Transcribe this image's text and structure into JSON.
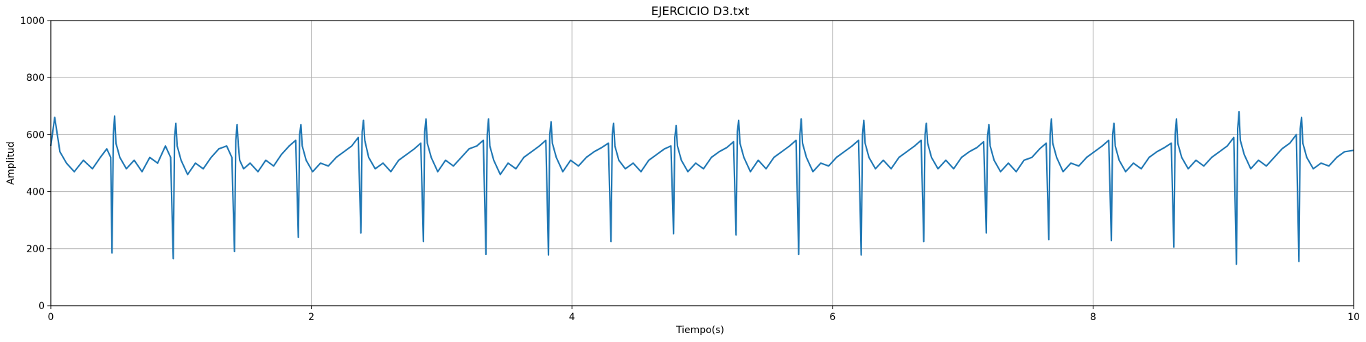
{
  "chart_data": {
    "type": "line",
    "title": "EJERCICIO D3.txt",
    "xlabel": "Tiempo(s)",
    "ylabel": "Amplitud",
    "xlim": [
      0,
      10
    ],
    "ylim": [
      0,
      1000
    ],
    "xticks": [
      0,
      2,
      4,
      6,
      8,
      10
    ],
    "yticks": [
      0,
      200,
      400,
      600,
      800,
      1000
    ],
    "grid": true,
    "legend": "none",
    "series_color": "#1f77b4",
    "series": [
      {
        "x": [
          0.0,
          0.03,
          0.07,
          0.12,
          0.18,
          0.25,
          0.32,
          0.38,
          0.43,
          0.46,
          0.47,
          0.48,
          0.49,
          0.5,
          0.53,
          0.58,
          0.64,
          0.7,
          0.76,
          0.82,
          0.88,
          0.92,
          0.94,
          0.95,
          0.96,
          0.97,
          1.0,
          1.05,
          1.11,
          1.17,
          1.23,
          1.29,
          1.35,
          1.39,
          1.41,
          1.42,
          1.43,
          1.44,
          1.45,
          1.48,
          1.53,
          1.59,
          1.65,
          1.71,
          1.77,
          1.83,
          1.88,
          1.9,
          1.91,
          1.92,
          1.93,
          1.96,
          2.01,
          2.07,
          2.13,
          2.19,
          2.25,
          2.31,
          2.36,
          2.38,
          2.39,
          2.4,
          2.41,
          2.44,
          2.49,
          2.55,
          2.61,
          2.67,
          2.73,
          2.79,
          2.84,
          2.86,
          2.87,
          2.88,
          2.89,
          2.92,
          2.97,
          3.03,
          3.09,
          3.15,
          3.21,
          3.27,
          3.32,
          3.34,
          3.35,
          3.36,
          3.37,
          3.4,
          3.45,
          3.51,
          3.57,
          3.63,
          3.69,
          3.75,
          3.8,
          3.82,
          3.83,
          3.84,
          3.85,
          3.88,
          3.93,
          3.99,
          4.05,
          4.11,
          4.17,
          4.23,
          4.28,
          4.3,
          4.31,
          4.32,
          4.33,
          4.36,
          4.41,
          4.47,
          4.53,
          4.59,
          4.65,
          4.71,
          4.76,
          4.78,
          4.79,
          4.8,
          4.81,
          4.84,
          4.89,
          4.95,
          5.01,
          5.07,
          5.13,
          5.19,
          5.24,
          5.26,
          5.27,
          5.28,
          5.29,
          5.32,
          5.37,
          5.43,
          5.49,
          5.55,
          5.61,
          5.67,
          5.72,
          5.74,
          5.75,
          5.76,
          5.77,
          5.8,
          5.85,
          5.91,
          5.97,
          6.03,
          6.09,
          6.15,
          6.2,
          6.22,
          6.23,
          6.24,
          6.25,
          6.28,
          6.33,
          6.39,
          6.45,
          6.51,
          6.57,
          6.63,
          6.68,
          6.7,
          6.71,
          6.72,
          6.73,
          6.76,
          6.81,
          6.87,
          6.93,
          6.99,
          7.05,
          7.11,
          7.16,
          7.18,
          7.19,
          7.2,
          7.21,
          7.24,
          7.29,
          7.35,
          7.41,
          7.47,
          7.53,
          7.59,
          7.64,
          7.66,
          7.67,
          7.68,
          7.69,
          7.72,
          7.77,
          7.83,
          7.89,
          7.95,
          8.01,
          8.07,
          8.12,
          8.14,
          8.15,
          8.16,
          8.17,
          8.2,
          8.25,
          8.31,
          8.37,
          8.43,
          8.49,
          8.55,
          8.6,
          8.62,
          8.63,
          8.64,
          8.65,
          8.68,
          8.73,
          8.79,
          8.85,
          8.91,
          8.97,
          9.03,
          9.08,
          9.1,
          9.11,
          9.12,
          9.13,
          9.16,
          9.21,
          9.27,
          9.33,
          9.39,
          9.45,
          9.51,
          9.56,
          9.58,
          9.59,
          9.6,
          9.61,
          9.64,
          9.69,
          9.75,
          9.81,
          9.87,
          9.93,
          10.0
        ],
        "y": [
          560,
          660,
          540,
          500,
          470,
          510,
          480,
          520,
          550,
          520,
          185,
          600,
          665,
          570,
          520,
          480,
          510,
          470,
          520,
          500,
          560,
          520,
          165,
          590,
          640,
          560,
          510,
          460,
          500,
          480,
          520,
          550,
          560,
          520,
          190,
          580,
          635,
          560,
          510,
          480,
          500,
          470,
          510,
          490,
          530,
          560,
          580,
          240,
          600,
          635,
          560,
          510,
          470,
          500,
          490,
          520,
          540,
          560,
          590,
          255,
          610,
          650,
          580,
          520,
          480,
          500,
          470,
          510,
          530,
          550,
          570,
          225,
          610,
          655,
          570,
          520,
          470,
          510,
          490,
          520,
          550,
          560,
          580,
          180,
          600,
          655,
          560,
          510,
          460,
          500,
          480,
          520,
          540,
          560,
          580,
          178,
          600,
          645,
          570,
          520,
          470,
          510,
          490,
          520,
          540,
          555,
          570,
          225,
          600,
          640,
          560,
          510,
          480,
          500,
          470,
          510,
          530,
          550,
          560,
          252,
          590,
          632,
          560,
          510,
          470,
          500,
          480,
          520,
          540,
          555,
          575,
          248,
          610,
          650,
          570,
          520,
          470,
          510,
          480,
          520,
          540,
          560,
          580,
          180,
          600,
          655,
          570,
          520,
          470,
          500,
          490,
          520,
          540,
          560,
          580,
          178,
          600,
          650,
          570,
          520,
          480,
          510,
          480,
          520,
          540,
          560,
          580,
          225,
          600,
          640,
          570,
          520,
          480,
          510,
          480,
          520,
          540,
          555,
          575,
          255,
          595,
          635,
          560,
          510,
          470,
          500,
          470,
          510,
          520,
          550,
          570,
          232,
          600,
          655,
          570,
          520,
          470,
          500,
          490,
          520,
          540,
          560,
          580,
          228,
          600,
          640,
          560,
          510,
          470,
          500,
          480,
          520,
          540,
          555,
          570,
          205,
          600,
          655,
          570,
          520,
          480,
          510,
          490,
          520,
          540,
          560,
          590,
          145,
          620,
          680,
          580,
          530,
          480,
          510,
          490,
          520,
          550,
          570,
          600,
          155,
          620,
          660,
          570,
          520,
          480,
          500,
          490,
          520,
          540,
          545
        ]
      }
    ]
  }
}
